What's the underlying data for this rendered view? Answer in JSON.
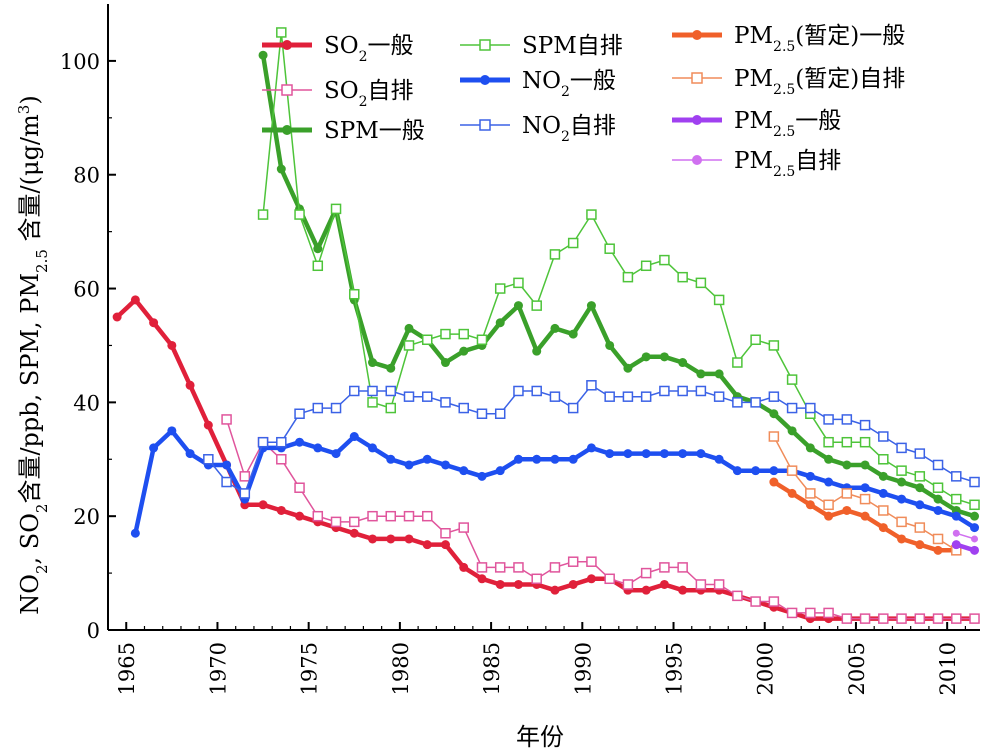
{
  "chart_data": {
    "type": "line",
    "title": "",
    "xlabel": "年份",
    "ylabel": "NO2, SO2含量/ppb, SPM, PM2.5含量/(μg/m3)",
    "ylabel_parts": {
      "a": "NO",
      "a_sub": "2",
      "b": ", SO",
      "b_sub": "2",
      "c": "含量/ppb, SPM, PM",
      "c_sub": "2.5",
      "d": " 含量/(μg/m",
      "d_sup": "3",
      "e": ")"
    },
    "xlim": [
      1964,
      2011.8
    ],
    "ylim": [
      0,
      110
    ],
    "xticks": [
      1965,
      1970,
      1975,
      1980,
      1985,
      1990,
      1995,
      2000,
      2005,
      2010
    ],
    "yticks": [
      0,
      20,
      40,
      60,
      80,
      100
    ],
    "grid": false,
    "legend_position": "top",
    "series": [
      {
        "name": "SO2一般",
        "name_main": "SO",
        "name_sub": "2",
        "name_tail": "一般",
        "color": "#e0203a",
        "style": "thick",
        "marker": "dot",
        "x": [
          1964.5,
          1965.5,
          1966.5,
          1967.5,
          1968.5,
          1969.5,
          1970.5,
          1971.5,
          1972.5,
          1973.5,
          1974.5,
          1975.5,
          1976.5,
          1977.5,
          1978.5,
          1979.5,
          1980.5,
          1981.5,
          1982.5,
          1983.5,
          1984.5,
          1985.5,
          1986.5,
          1987.5,
          1988.5,
          1989.5,
          1990.5,
          1991.5,
          1992.5,
          1993.5,
          1994.5,
          1995.5,
          1996.5,
          1997.5,
          1998.5,
          1999.5,
          2000.5,
          2001.5,
          2002.5,
          2003.5,
          2004.5,
          2005.5,
          2006.5,
          2007.5,
          2008.5,
          2009.5,
          2010.5,
          2011.5
        ],
        "y": [
          55,
          58,
          54,
          50,
          43,
          36,
          29,
          22,
          22,
          21,
          20,
          19,
          18,
          17,
          16,
          16,
          16,
          15,
          15,
          11,
          9,
          8,
          8,
          8,
          7,
          8,
          9,
          9,
          7,
          7,
          8,
          7,
          7,
          7,
          6,
          5,
          4,
          3,
          2,
          2,
          2,
          2,
          2,
          2,
          2,
          2,
          2,
          2
        ]
      },
      {
        "name": "SO2自排",
        "name_main": "SO",
        "name_sub": "2",
        "name_tail": "自排",
        "color": "#e0559c",
        "style": "thin",
        "marker": "square",
        "x": [
          1970.5,
          1971.5,
          1972.5,
          1973.5,
          1974.5,
          1975.5,
          1976.5,
          1977.5,
          1978.5,
          1979.5,
          1980.5,
          1981.5,
          1982.5,
          1983.5,
          1984.5,
          1985.5,
          1986.5,
          1987.5,
          1988.5,
          1989.5,
          1990.5,
          1991.5,
          1992.5,
          1993.5,
          1994.5,
          1995.5,
          1996.5,
          1997.5,
          1998.5,
          1999.5,
          2000.5,
          2001.5,
          2002.5,
          2003.5,
          2004.5,
          2005.5,
          2006.5,
          2007.5,
          2008.5,
          2009.5,
          2010.5,
          2011.5
        ],
        "y": [
          37,
          27,
          33,
          30,
          25,
          20,
          19,
          19,
          20,
          20,
          20,
          20,
          17,
          18,
          11,
          11,
          11,
          9,
          11,
          12,
          12,
          9,
          8,
          10,
          11,
          11,
          8,
          8,
          6,
          5,
          5,
          3,
          3,
          3,
          2,
          2,
          2,
          2,
          2,
          2,
          2,
          2
        ]
      },
      {
        "name": "SPM一般",
        "name_main": "SPM",
        "name_sub": "",
        "name_tail": "一般",
        "color": "#3aa02a",
        "style": "thick",
        "marker": "dot",
        "x": [
          1972.5,
          1973.5,
          1974.5,
          1975.5,
          1976.5,
          1977.5,
          1978.5,
          1979.5,
          1980.5,
          1981.5,
          1982.5,
          1983.5,
          1984.5,
          1985.5,
          1986.5,
          1987.5,
          1988.5,
          1989.5,
          1990.5,
          1991.5,
          1992.5,
          1993.5,
          1994.5,
          1995.5,
          1996.5,
          1997.5,
          1998.5,
          1999.5,
          2000.5,
          2001.5,
          2002.5,
          2003.5,
          2004.5,
          2005.5,
          2006.5,
          2007.5,
          2008.5,
          2009.5,
          2010.5,
          2011.5
        ],
        "y": [
          101,
          81,
          74,
          67,
          74,
          58,
          47,
          46,
          53,
          51,
          47,
          49,
          50,
          54,
          57,
          49,
          53,
          52,
          57,
          50,
          46,
          48,
          48,
          47,
          45,
          45,
          41,
          40,
          38,
          35,
          32,
          30,
          29,
          29,
          27,
          26,
          25,
          23,
          21,
          20
        ]
      },
      {
        "name": "SPM自排",
        "name_main": "SPM",
        "name_sub": "",
        "name_tail": "自排",
        "color": "#4ec43a",
        "style": "thin",
        "marker": "square",
        "x": [
          1972.5,
          1973.5,
          1974.5,
          1975.5,
          1976.5,
          1977.5,
          1978.5,
          1979.5,
          1980.5,
          1981.5,
          1982.5,
          1983.5,
          1984.5,
          1985.5,
          1986.5,
          1987.5,
          1988.5,
          1989.5,
          1990.5,
          1991.5,
          1992.5,
          1993.5,
          1994.5,
          1995.5,
          1996.5,
          1997.5,
          1998.5,
          1999.5,
          2000.5,
          2001.5,
          2002.5,
          2003.5,
          2004.5,
          2005.5,
          2006.5,
          2007.5,
          2008.5,
          2009.5,
          2010.5,
          2011.5
        ],
        "y": [
          73,
          105,
          73,
          64,
          74,
          59,
          40,
          39,
          50,
          51,
          52,
          52,
          51,
          60,
          61,
          57,
          66,
          68,
          73,
          67,
          62,
          64,
          65,
          62,
          61,
          58,
          47,
          51,
          50,
          44,
          38,
          33,
          33,
          33,
          30,
          28,
          27,
          25,
          23,
          22
        ]
      },
      {
        "name": "NO2一般",
        "name_main": "NO",
        "name_sub": "2",
        "name_tail": "一般",
        "color": "#1e4ff0",
        "style": "thick",
        "marker": "dot",
        "x": [
          1965.5,
          1966.5,
          1967.5,
          1968.5,
          1969.5,
          1970.5,
          1971.5,
          1972.5,
          1973.5,
          1974.5,
          1975.5,
          1976.5,
          1977.5,
          1978.5,
          1979.5,
          1980.5,
          1981.5,
          1982.5,
          1983.5,
          1984.5,
          1985.5,
          1986.5,
          1987.5,
          1988.5,
          1989.5,
          1990.5,
          1991.5,
          1992.5,
          1993.5,
          1994.5,
          1995.5,
          1996.5,
          1997.5,
          1998.5,
          1999.5,
          2000.5,
          2001.5,
          2002.5,
          2003.5,
          2004.5,
          2005.5,
          2006.5,
          2007.5,
          2008.5,
          2009.5,
          2010.5,
          2011.5
        ],
        "y": [
          17,
          32,
          35,
          31,
          29,
          29,
          23,
          32,
          32,
          33,
          32,
          31,
          34,
          32,
          30,
          29,
          30,
          29,
          28,
          27,
          28,
          30,
          30,
          30,
          30,
          32,
          31,
          31,
          31,
          31,
          31,
          31,
          30,
          28,
          28,
          28,
          28,
          27,
          26,
          25,
          25,
          24,
          23,
          22,
          21,
          20,
          18
        ]
      },
      {
        "name": "NO2自排",
        "name_main": "NO",
        "name_sub": "2",
        "name_tail": "自排",
        "color": "#3b62e6",
        "style": "thin",
        "marker": "square",
        "x": [
          1969.5,
          1970.5,
          1971.5,
          1972.5,
          1973.5,
          1974.5,
          1975.5,
          1976.5,
          1977.5,
          1978.5,
          1979.5,
          1980.5,
          1981.5,
          1982.5,
          1983.5,
          1984.5,
          1985.5,
          1986.5,
          1987.5,
          1988.5,
          1989.5,
          1990.5,
          1991.5,
          1992.5,
          1993.5,
          1994.5,
          1995.5,
          1996.5,
          1997.5,
          1998.5,
          1999.5,
          2000.5,
          2001.5,
          2002.5,
          2003.5,
          2004.5,
          2005.5,
          2006.5,
          2007.5,
          2008.5,
          2009.5,
          2010.5,
          2011.5
        ],
        "y": [
          30,
          26,
          24,
          33,
          33,
          38,
          39,
          39,
          42,
          42,
          42,
          41,
          41,
          40,
          39,
          38,
          38,
          42,
          42,
          41,
          39,
          43,
          41,
          41,
          41,
          42,
          42,
          42,
          41,
          40,
          40,
          41,
          39,
          39,
          37,
          37,
          36,
          34,
          32,
          31,
          29,
          27,
          26
        ]
      },
      {
        "name": "PM2.5(暂定)一般",
        "name_main": "PM",
        "name_sub": "2.5",
        "name_tail": "(暂定)一般",
        "color": "#f0602a",
        "style": "thick",
        "marker": "dot",
        "x": [
          2000.5,
          2001.5,
          2002.5,
          2003.5,
          2004.5,
          2005.5,
          2006.5,
          2007.5,
          2008.5,
          2009.5,
          2010.5
        ],
        "y": [
          26,
          24,
          22,
          20,
          21,
          20,
          18,
          16,
          15,
          14,
          14
        ]
      },
      {
        "name": "PM2.5(暂定)自排",
        "name_main": "PM",
        "name_sub": "2.5",
        "name_tail": "(暂定)自排",
        "color": "#f08c5a",
        "style": "thin",
        "marker": "square",
        "x": [
          2000.5,
          2001.5,
          2002.5,
          2003.5,
          2004.5,
          2005.5,
          2006.5,
          2007.5,
          2008.5,
          2009.5,
          2010.5
        ],
        "y": [
          34,
          28,
          24,
          22,
          24,
          23,
          21,
          19,
          18,
          16,
          14
        ]
      },
      {
        "name": "PM2.5一般",
        "name_main": "PM",
        "name_sub": "2.5",
        "name_tail": "一般",
        "color": "#a040f0",
        "style": "thick",
        "marker": "dot",
        "x": [
          2010.5,
          2011.5
        ],
        "y": [
          15,
          14
        ]
      },
      {
        "name": "PM2.5自排",
        "name_main": "PM",
        "name_sub": "2.5",
        "name_tail": "自排",
        "color": "#d070f0",
        "style": "thin",
        "marker": "dot",
        "x": [
          2010.5,
          2011.5
        ],
        "y": [
          17,
          16
        ]
      }
    ]
  }
}
